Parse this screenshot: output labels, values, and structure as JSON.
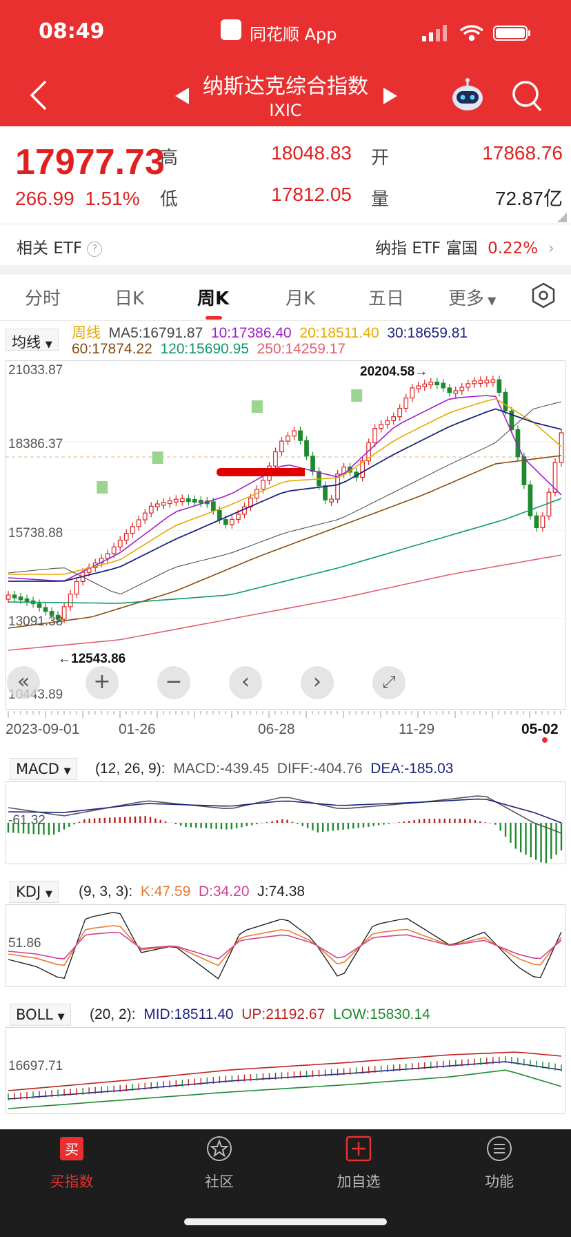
{
  "status": {
    "time": "08:49",
    "app_name": "同花顺 App"
  },
  "header": {
    "title": "纳斯达克综合指数",
    "code": "IXIC"
  },
  "quote": {
    "price": "17977.73",
    "change": "266.99",
    "change_pct": "1.51%",
    "high_label": "高",
    "high": "18048.83",
    "low_label": "低",
    "low": "17812.05",
    "open_label": "开",
    "open": "17868.76",
    "volume_label": "量",
    "volume": "72.87亿"
  },
  "etf": {
    "left_label": "相关 ETF",
    "right_label": "纳指 ETF 富国",
    "right_pct": "0.22%"
  },
  "tabs": [
    {
      "label": "分时"
    },
    {
      "label": "日K"
    },
    {
      "label": "周K"
    },
    {
      "label": "月K"
    },
    {
      "label": "五日"
    },
    {
      "label": "更多"
    }
  ],
  "ma_legend": {
    "dropdown": "均线",
    "period": "周线",
    "ma5": "MA5:16791.87",
    "ma10": "10:17386.40",
    "ma20": "20:18511.40",
    "ma30": "30:18659.81",
    "ma60": "60:17874.22",
    "ma120": "120:15690.95",
    "ma250": "250:14259.17"
  },
  "price_axis": {
    "top": "21033.87",
    "l2": "18386.37",
    "l3": "15738.88",
    "l4": "13091.38",
    "bottom": "10443.89"
  },
  "annotations": {
    "high": "20204.58→",
    "low": "←12543.86"
  },
  "x_axis": {
    "d1": "2023-09-01",
    "d2": "01-26",
    "d3": "06-28",
    "d4": "11-29",
    "d5": "05-02"
  },
  "macd": {
    "name": "MACD",
    "params": "(12, 26, 9):",
    "macd": "MACD:-439.45",
    "diff": "DIFF:-404.76",
    "dea": "DEA:-185.03",
    "axis": "-61.32"
  },
  "kdj": {
    "name": "KDJ",
    "params": "(9, 3, 3):",
    "k": "K:47.59",
    "d": "D:34.20",
    "j": "J:74.38",
    "axis": "51.86"
  },
  "boll": {
    "name": "BOLL",
    "params": "(20, 2):",
    "mid": "MID:18511.40",
    "up": "UP:21192.67",
    "low": "LOW:15830.14",
    "axis": "16697.71"
  },
  "nav": [
    {
      "label": "买指数"
    },
    {
      "label": "社区"
    },
    {
      "label": "加自选"
    },
    {
      "label": "功能"
    }
  ],
  "colors": {
    "header": "#e93030",
    "up": "#e02020",
    "down": "#1e8a2e"
  }
}
